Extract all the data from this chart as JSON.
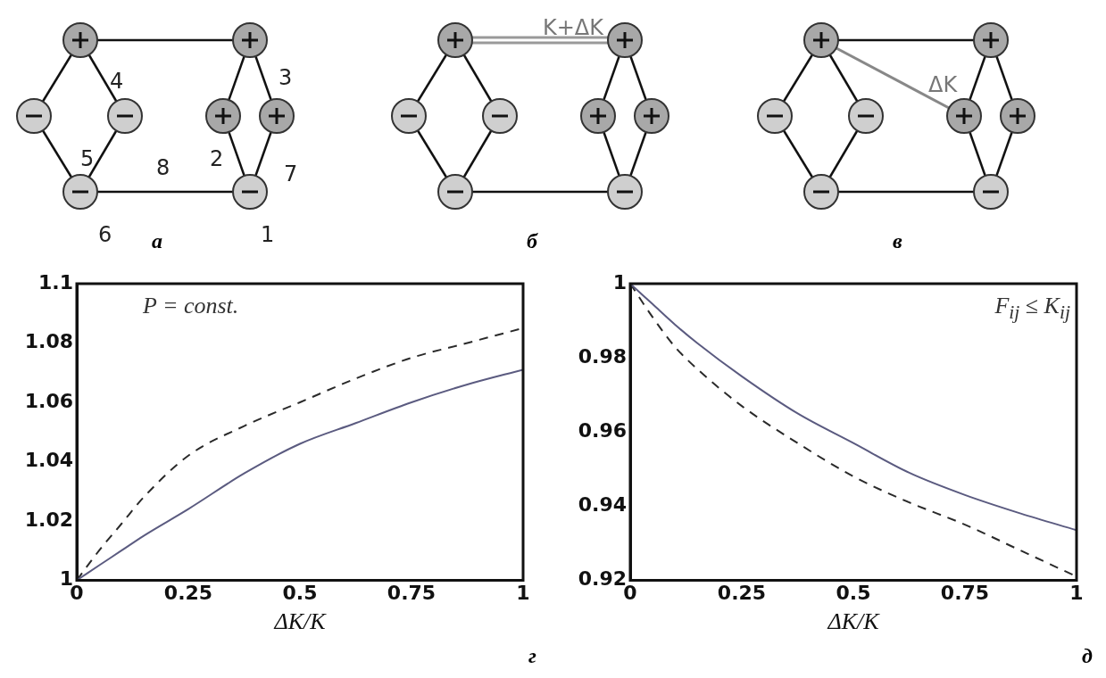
{
  "chart_data": [
    {
      "type": "other",
      "annotations": [
        "4",
        "3",
        "5",
        "8",
        "2",
        "7",
        "6",
        "1",
        "а"
      ]
    },
    {
      "type": "other",
      "annotations": [
        "K+ΔK",
        "б"
      ]
    },
    {
      "type": "other",
      "annotations": [
        "ΔK",
        "в"
      ]
    },
    {
      "type": "line",
      "xlabel": "ΔK/K",
      "annotations": [
        "P = const.",
        "г"
      ],
      "xlim": [
        0,
        1
      ],
      "xticks": [
        0,
        0.25,
        0.5,
        0.75,
        1
      ],
      "ylim": [
        1,
        1.1
      ],
      "yticks": [
        1,
        1.02,
        1.04,
        1.06,
        1.08,
        1.1
      ],
      "marker": "none",
      "legend": false,
      "grid": false,
      "x": [
        0,
        0.05,
        0.1,
        0.15,
        0.25,
        0.375,
        0.5,
        0.625,
        0.75,
        0.875,
        1
      ],
      "series": [
        {
          "color": "#5b5b80",
          "line_style": "solid",
          "values": [
            1,
            1.005,
            1.01,
            1.015,
            1.024,
            1.036,
            1.046,
            1.053,
            1.06,
            1.066,
            1.071
          ]
        },
        {
          "color": "#2a2a2a",
          "line_style": "dashed",
          "values": [
            1,
            1.01,
            1.019,
            1.028,
            1.042,
            1.052,
            1.06,
            1.068,
            1.075,
            1.08,
            1.085
          ]
        }
      ]
    },
    {
      "type": "line",
      "xlabel": "ΔK/K",
      "annotations": [
        "F$_{ij}$ ≤ K$_{ij}$",
        "д"
      ],
      "xlim": [
        0,
        1
      ],
      "xticks": [
        0,
        0.25,
        0.5,
        0.75,
        1
      ],
      "ylim": [
        0.92,
        1
      ],
      "yticks": [
        0.92,
        0.94,
        0.96,
        0.98,
        1
      ],
      "marker": "none",
      "legend": false,
      "grid": false,
      "x": [
        0,
        0.05,
        0.1,
        0.15,
        0.25,
        0.375,
        0.5,
        0.625,
        0.75,
        0.875,
        1
      ],
      "series": [
        {
          "color": "#5b5b80",
          "line_style": "solid",
          "values": [
            1,
            0.9945,
            0.989,
            0.984,
            0.975,
            0.965,
            0.957,
            0.949,
            0.943,
            0.938,
            0.9335
          ]
        },
        {
          "color": "#2a2a2a",
          "line_style": "dashed",
          "values": [
            1,
            0.991,
            0.983,
            0.977,
            0.967,
            0.957,
            0.948,
            0.941,
            0.935,
            0.928,
            0.921
          ]
        }
      ]
    }
  ]
}
